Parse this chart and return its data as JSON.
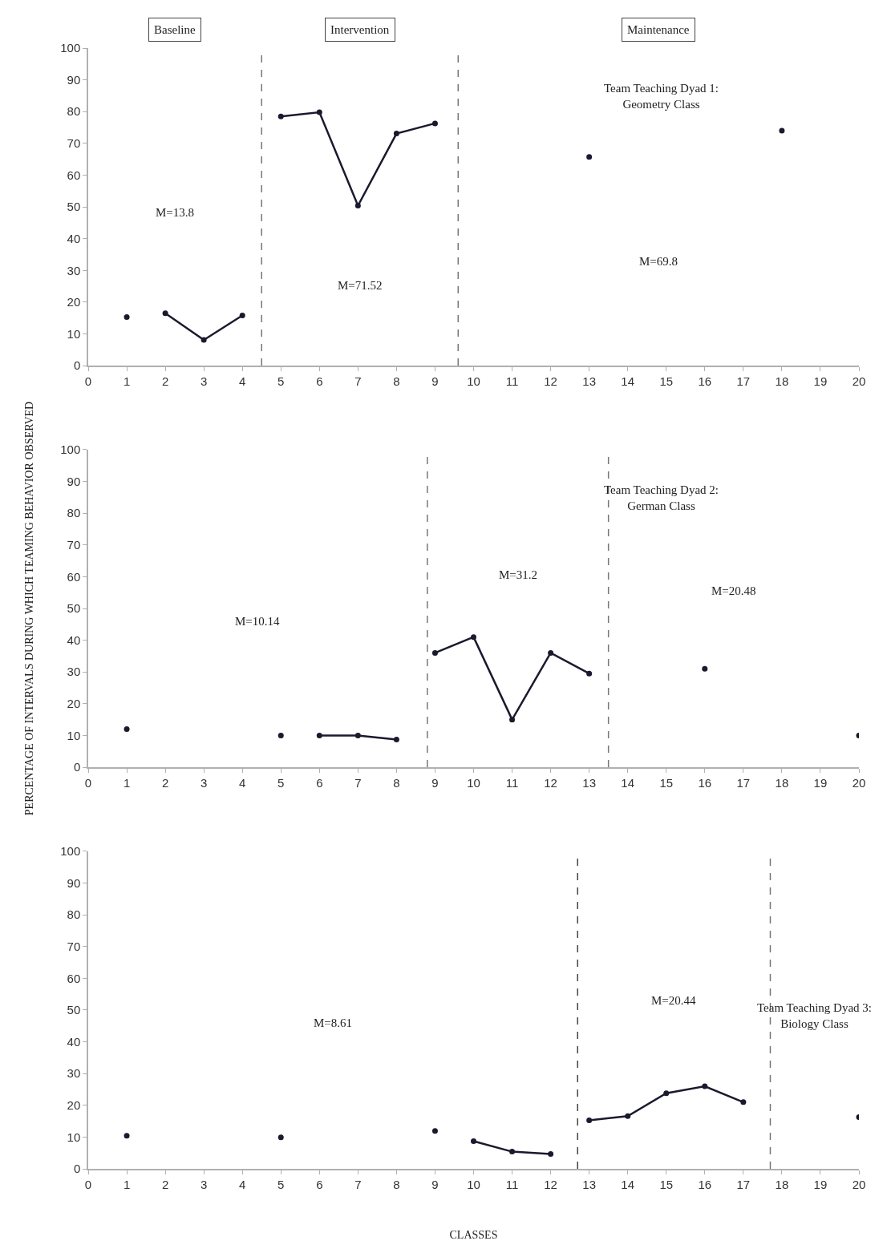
{
  "chart_data": [
    {
      "type": "line",
      "xlim": [
        0,
        20
      ],
      "xticks": [
        0,
        1,
        2,
        3,
        4,
        5,
        6,
        7,
        8,
        9,
        10,
        11,
        12,
        13,
        14,
        15,
        16,
        17,
        18,
        19,
        20
      ],
      "ylim": [
        0,
        100
      ],
      "yticks": [
        0,
        10,
        20,
        30,
        40,
        50,
        60,
        70,
        80,
        90,
        100
      ],
      "marker": "circle",
      "line_style": "solid",
      "series": [
        {
          "type": "scatter",
          "color": "#1a1a2e",
          "x": [
            1
          ],
          "values": [
            15.3
          ]
        },
        {
          "type": "line",
          "color": "#1a1a2e",
          "x": [
            2,
            3,
            4
          ],
          "values": [
            16.5,
            8.1,
            15.8
          ]
        },
        {
          "type": "line",
          "color": "#1a1a2e",
          "x": [
            5,
            6,
            7,
            8,
            9
          ],
          "values": [
            78.5,
            79.8,
            50.4,
            73.1,
            76.3
          ]
        },
        {
          "type": "scatter",
          "color": "#1a1a2e",
          "x": [
            13,
            18
          ],
          "values": [
            65.7,
            74
          ]
        }
      ],
      "ref_lines": [
        {
          "axis": "x",
          "value": 4.5,
          "color": "#777777",
          "line_style": "dashed"
        },
        {
          "axis": "x",
          "value": 9.6,
          "color": "#777777",
          "line_style": "dashed"
        }
      ],
      "annotations": [
        "Baseline",
        "Intervention",
        "Maintenance",
        "M=13.8",
        "M=71.52",
        "M=69.8",
        "Team Teaching Dyad 1:\nGeometry Class"
      ]
    },
    {
      "type": "line",
      "xlim": [
        0,
        20
      ],
      "xticks": [
        0,
        1,
        2,
        3,
        4,
        5,
        6,
        7,
        8,
        9,
        10,
        11,
        12,
        13,
        14,
        15,
        16,
        17,
        18,
        19,
        20
      ],
      "ylim": [
        0,
        100
      ],
      "yticks": [
        0,
        10,
        20,
        30,
        40,
        50,
        60,
        70,
        80,
        90,
        100
      ],
      "marker": "circle",
      "line_style": "solid",
      "ylabel": "PERCENTAGE OF INTERVALS DURING WHICH TEAMING BEHAVIOR OBSERVED",
      "series": [
        {
          "type": "scatter",
          "color": "#1a1a2e",
          "x": [
            1,
            5
          ],
          "values": [
            12,
            10
          ]
        },
        {
          "type": "line",
          "color": "#1a1a2e",
          "x": [
            6,
            7,
            8
          ],
          "values": [
            10,
            10,
            8.7
          ]
        },
        {
          "type": "line",
          "color": "#1a1a2e",
          "x": [
            9,
            10,
            11,
            12,
            13
          ],
          "values": [
            36,
            41,
            15,
            36,
            29.5
          ]
        },
        {
          "type": "scatter",
          "color": "#1a1a2e",
          "x": [
            16,
            20
          ],
          "values": [
            31,
            10
          ]
        }
      ],
      "ref_lines": [
        {
          "axis": "x",
          "value": 8.8,
          "color": "#777777",
          "line_style": "dashed"
        },
        {
          "axis": "x",
          "value": 13.5,
          "color": "#777777",
          "line_style": "dashed"
        }
      ],
      "annotations": [
        "M=10.14",
        "M=31.2",
        "M=20.48",
        "Team Teaching Dyad 2:\nGerman Class"
      ]
    },
    {
      "type": "line",
      "xlim": [
        0,
        20
      ],
      "xticks": [
        0,
        1,
        2,
        3,
        4,
        5,
        6,
        7,
        8,
        9,
        10,
        11,
        12,
        13,
        14,
        15,
        16,
        17,
        18,
        19,
        20
      ],
      "ylim": [
        0,
        100
      ],
      "yticks": [
        0,
        10,
        20,
        30,
        40,
        50,
        60,
        70,
        80,
        90,
        100
      ],
      "marker": "circle",
      "line_style": "solid",
      "xlabel": "CLASSES",
      "series": [
        {
          "type": "scatter",
          "color": "#1a1a2e",
          "x": [
            1,
            5,
            9
          ],
          "values": [
            10.4,
            9.9,
            11.9
          ]
        },
        {
          "type": "line",
          "color": "#1a1a2e",
          "x": [
            10,
            11,
            12
          ],
          "values": [
            8.7,
            5.4,
            4.7
          ]
        },
        {
          "type": "line",
          "color": "#1a1a2e",
          "x": [
            13,
            14,
            15,
            16,
            17
          ],
          "values": [
            15.3,
            16.6,
            23.8,
            26,
            21
          ]
        },
        {
          "type": "scatter",
          "color": "#1a1a2e",
          "x": [
            20
          ],
          "values": [
            16.3
          ]
        }
      ],
      "ref_lines": [
        {
          "axis": "x",
          "value": 12.7,
          "color": "#444444",
          "line_style": "dashed"
        },
        {
          "axis": "x",
          "value": 17.7,
          "color": "#777777",
          "line_style": "dashed"
        }
      ],
      "annotations": [
        "M=8.61",
        "M=20.44",
        "Team Teaching Dyad 3:\nBiology Class"
      ]
    }
  ]
}
